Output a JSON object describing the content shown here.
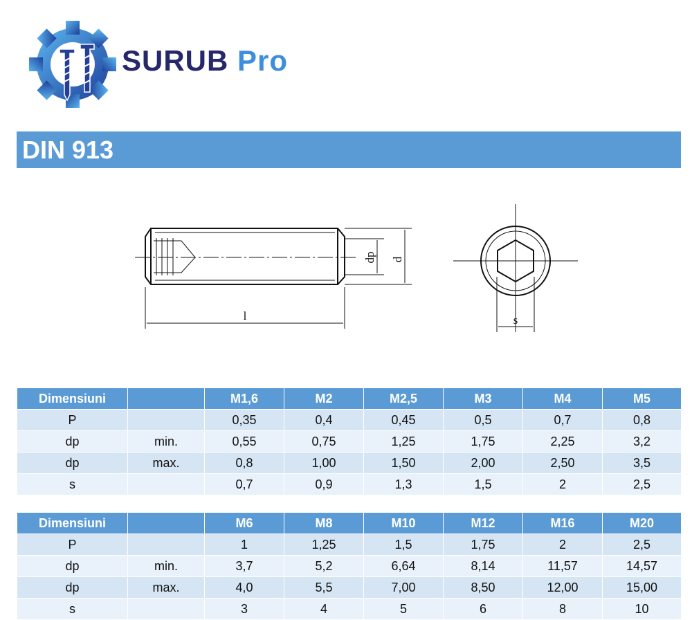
{
  "logo": {
    "brand": "SURUB",
    "suffix": "Pro"
  },
  "title": "DIN 913",
  "drawing": {
    "dp_label": "dp",
    "d_label": "d",
    "l_label": "l",
    "s_label": "s"
  },
  "tables": [
    {
      "header": {
        "label": "Dimensiuni",
        "sizes": [
          "M1,6",
          "M2",
          "M2,5",
          "M3",
          "M4",
          "M5"
        ]
      },
      "rows": [
        {
          "name": "P",
          "values": [
            "0,35",
            "0,4",
            "0,45",
            "0,5",
            "0,7",
            "0,8"
          ]
        },
        {
          "name": "dp",
          "qualifier": "min.",
          "values": [
            "0,55",
            "0,75",
            "1,25",
            "1,75",
            "2,25",
            "3,2"
          ]
        },
        {
          "name": "dp",
          "qualifier": "max.",
          "values": [
            "0,8",
            "1,00",
            "1,50",
            "2,00",
            "2,50",
            "3,5"
          ]
        },
        {
          "name": "s",
          "values": [
            "0,7",
            "0,9",
            "1,3",
            "1,5",
            "2",
            "2,5"
          ]
        }
      ]
    },
    {
      "header": {
        "label": "Dimensiuni",
        "sizes": [
          "M6",
          "M8",
          "M10",
          "M12",
          "M16",
          "M20"
        ]
      },
      "rows": [
        {
          "name": "P",
          "values": [
            "1",
            "1,25",
            "1,5",
            "1,75",
            "2",
            "2,5"
          ]
        },
        {
          "name": "dp",
          "qualifier": "min.",
          "values": [
            "3,7",
            "5,2",
            "6,64",
            "8,14",
            "11,57",
            "14,57"
          ]
        },
        {
          "name": "dp",
          "qualifier": "max.",
          "values": [
            "4,0",
            "5,5",
            "7,00",
            "8,50",
            "12,00",
            "15,00"
          ]
        },
        {
          "name": "s",
          "values": [
            "3",
            "4",
            "5",
            "6",
            "8",
            "10"
          ]
        }
      ]
    }
  ]
}
